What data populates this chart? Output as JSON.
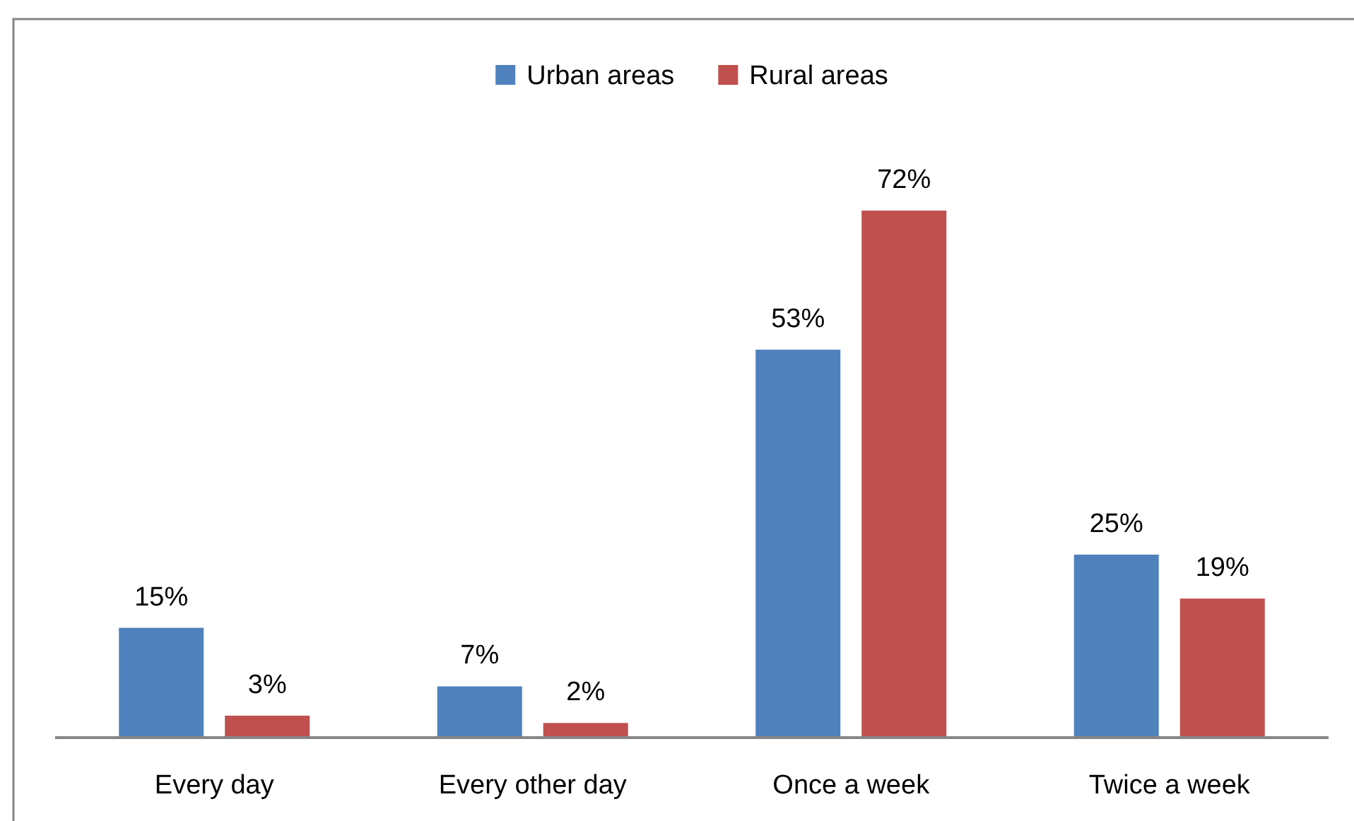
{
  "chart_data": {
    "type": "bar",
    "categories": [
      "Every day",
      "Every other day",
      "Once a week",
      "Twice a week"
    ],
    "series": [
      {
        "name": "Urban areas",
        "color": "#4f81bd",
        "values": [
          15,
          7,
          53,
          25
        ],
        "value_labels": [
          "15%",
          "7%",
          "53%",
          "25%"
        ]
      },
      {
        "name": "Rural areas",
        "color": "#c0504d",
        "values": [
          3,
          2,
          72,
          19
        ],
        "value_labels": [
          "3%",
          "2%",
          "72%",
          "19%"
        ]
      }
    ],
    "legend": "top"
  }
}
